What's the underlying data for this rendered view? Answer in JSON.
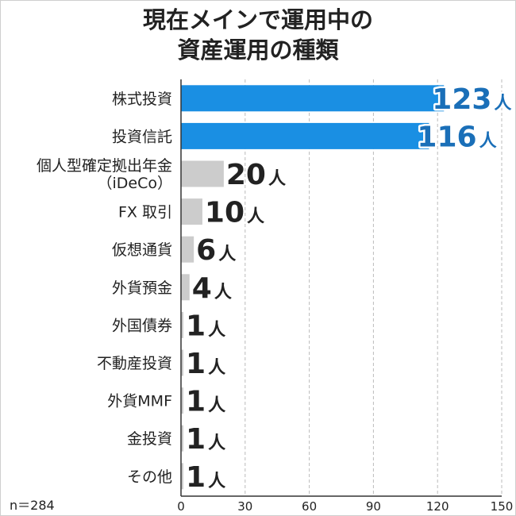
{
  "chart_data": {
    "type": "bar",
    "orientation": "horizontal",
    "title_lines": [
      "現在メインで運用中の",
      "資産運用の種類"
    ],
    "categories": [
      [
        "株式投資"
      ],
      [
        "投資信託"
      ],
      [
        "個人型確定拠出年金",
        "（iDeCo）"
      ],
      [
        "FX 取引"
      ],
      [
        "仮想通貨"
      ],
      [
        "外貨預金"
      ],
      [
        "外国債券"
      ],
      [
        "不動産投資"
      ],
      [
        "外貨MMF"
      ],
      [
        "金投資"
      ],
      [
        "その他"
      ]
    ],
    "values": [
      123,
      116,
      20,
      10,
      6,
      4,
      1,
      1,
      1,
      1,
      1
    ],
    "unit": "人",
    "xlim": [
      0,
      150
    ],
    "xticks": [
      0,
      30,
      60,
      90,
      120,
      150
    ],
    "grid": "vertical dashed",
    "sample_note": "n＝284",
    "colors": {
      "highlight_bar": "#1a8fe3",
      "highlight_label": "#1a6fb8",
      "other_bar": "#cccccc",
      "other_label": "#222222",
      "grid": "#bbbbbb",
      "axis": "#333333"
    },
    "highlight_count": 2
  }
}
